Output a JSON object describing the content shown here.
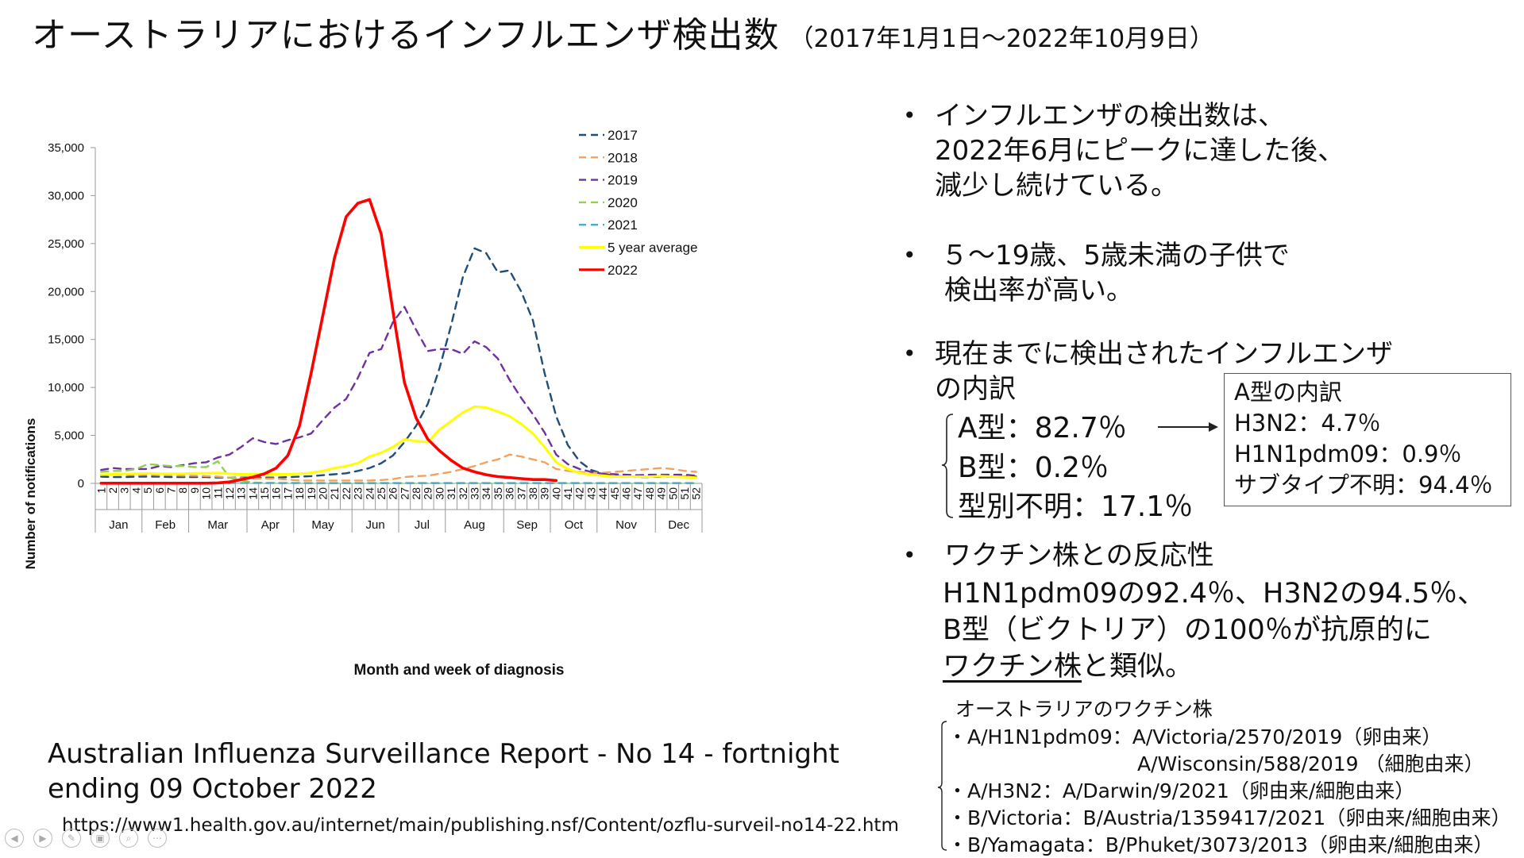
{
  "title": {
    "main": "オーストラリアにおけるインフルエンザ検出数",
    "sub": "（2017年1月1日～2022年10月9日）"
  },
  "chart_data": {
    "type": "line",
    "ylabel": "Number of notifications",
    "xlabel": "Month and week of diagnosis",
    "ylim": [
      0,
      35000
    ],
    "y_ticks": [
      "0",
      "5,000",
      "10,000",
      "15,000",
      "20,000",
      "25,000",
      "30,000",
      "35,000"
    ],
    "x_week_labels": [
      "1",
      "2",
      "3",
      "4",
      "5",
      "6",
      "7",
      "8",
      "9",
      "10",
      "11",
      "12",
      "13",
      "14",
      "15",
      "16",
      "17",
      "18",
      "19",
      "20",
      "21",
      "22",
      "23",
      "24",
      "25",
      "26",
      "27",
      "28",
      "29",
      "30",
      "31",
      "32",
      "33",
      "34",
      "35",
      "36",
      "37",
      "38",
      "39",
      "40",
      "41",
      "42",
      "43",
      "44",
      "45",
      "46",
      "47",
      "48",
      "49",
      "50",
      "51",
      "52"
    ],
    "months": [
      {
        "label": "Jan",
        "start": 1,
        "end": 4
      },
      {
        "label": "Feb",
        "start": 5,
        "end": 8
      },
      {
        "label": "Mar",
        "start": 9,
        "end": 13
      },
      {
        "label": "Apr",
        "start": 14,
        "end": 17
      },
      {
        "label": "May",
        "start": 18,
        "end": 22
      },
      {
        "label": "Jun",
        "start": 23,
        "end": 26
      },
      {
        "label": "Jul",
        "start": 27,
        "end": 30
      },
      {
        "label": "Aug",
        "start": 31,
        "end": 35
      },
      {
        "label": "Sep",
        "start": 36,
        "end": 39
      },
      {
        "label": "Oct",
        "start": 40,
        "end": 43
      },
      {
        "label": "Nov",
        "start": 44,
        "end": 48
      },
      {
        "label": "Dec",
        "start": 49,
        "end": 52
      }
    ],
    "series": [
      {
        "name": "2017",
        "color": "#1f4e79",
        "dash": "dashed",
        "values": [
          700,
          650,
          650,
          700,
          700,
          700,
          650,
          650,
          650,
          650,
          600,
          600,
          600,
          600,
          600,
          600,
          650,
          700,
          750,
          850,
          950,
          1050,
          1300,
          1600,
          2100,
          2900,
          4300,
          6000,
          8300,
          12000,
          16500,
          21500,
          24500,
          24000,
          22000,
          22200,
          20000,
          17000,
          11500,
          7000,
          4000,
          2300,
          1400,
          1000,
          800,
          700,
          650,
          650,
          700,
          700,
          700,
          700
        ]
      },
      {
        "name": "2018",
        "color": "#f4a15d",
        "dash": "dashed",
        "values": [
          900,
          900,
          900,
          850,
          900,
          850,
          850,
          800,
          800,
          750,
          700,
          600,
          550,
          500,
          500,
          500,
          400,
          300,
          300,
          300,
          300,
          300,
          300,
          300,
          350,
          450,
          650,
          750,
          800,
          1000,
          1200,
          1500,
          1800,
          2200,
          2500,
          3000,
          2800,
          2500,
          2200,
          1500,
          1300,
          1200,
          1100,
          1100,
          1200,
          1300,
          1400,
          1500,
          1600,
          1500,
          1300,
          1200
        ]
      },
      {
        "name": "2019",
        "color": "#7030a0",
        "dash": "dashed",
        "values": [
          1400,
          1600,
          1500,
          1500,
          1500,
          1800,
          1700,
          1900,
          2100,
          2200,
          2700,
          3000,
          3800,
          4700,
          4300,
          4100,
          4500,
          4800,
          5200,
          6600,
          7900,
          8800,
          11000,
          13600,
          14000,
          16800,
          18400,
          16000,
          13800,
          14000,
          14000,
          13500,
          14800,
          14200,
          13000,
          10800,
          8900,
          7200,
          5300,
          3000,
          2000,
          1500,
          1200,
          1000,
          950,
          900,
          850,
          900,
          900,
          900,
          900,
          800
        ]
      },
      {
        "name": "2020",
        "color": "#92d050",
        "dash": "dashed",
        "values": [
          1200,
          1300,
          1300,
          1500,
          2000,
          1900,
          1800,
          1800,
          1700,
          1700,
          2300,
          600,
          300,
          100,
          50,
          40,
          30,
          30,
          20,
          20,
          20,
          20,
          20,
          20,
          20,
          20,
          20,
          20,
          20,
          20,
          20,
          20,
          20,
          20,
          20,
          20,
          20,
          20,
          20,
          20,
          20,
          20,
          20,
          20,
          20,
          20,
          20,
          20,
          20,
          20,
          20,
          20
        ]
      },
      {
        "name": "2021",
        "color": "#4bacc6",
        "dash": "dashed",
        "values": [
          30,
          30,
          30,
          30,
          30,
          30,
          30,
          30,
          30,
          30,
          30,
          30,
          30,
          30,
          30,
          30,
          30,
          30,
          30,
          30,
          30,
          30,
          30,
          30,
          30,
          30,
          30,
          30,
          30,
          30,
          30,
          30,
          30,
          30,
          30,
          30,
          30,
          30,
          30,
          30,
          30,
          30,
          30,
          30,
          30,
          30,
          30,
          30,
          30,
          30,
          30,
          30
        ]
      },
      {
        "name": "5 year average",
        "color": "#ffff00",
        "dash": "solid",
        "values": [
          900,
          950,
          1000,
          1000,
          1050,
          1000,
          1000,
          1000,
          1050,
          1050,
          1100,
          1000,
          950,
          950,
          950,
          950,
          950,
          1000,
          1100,
          1300,
          1600,
          1800,
          2100,
          2800,
          3200,
          3800,
          4600,
          4400,
          4300,
          5600,
          6500,
          7400,
          8000,
          7900,
          7500,
          7000,
          6200,
          5200,
          3800,
          2200,
          1500,
          1100,
          900,
          800,
          700,
          700,
          700,
          700,
          750,
          700,
          650,
          600
        ]
      },
      {
        "name": "2022",
        "color": "#ff0000",
        "dash": "solid",
        "values": [
          20,
          20,
          20,
          20,
          20,
          20,
          20,
          20,
          20,
          20,
          50,
          150,
          400,
          650,
          1000,
          1600,
          2900,
          6000,
          11500,
          17500,
          23500,
          27800,
          29200,
          29600,
          26000,
          18000,
          10500,
          6800,
          4600,
          3400,
          2400,
          1600,
          1200,
          900,
          700,
          600,
          500,
          400,
          400,
          300,
          null,
          null,
          null,
          null,
          null,
          null,
          null,
          null,
          null,
          null,
          null,
          null
        ]
      }
    ]
  },
  "bullets": {
    "b1": [
      "インフルエンザの検出数は、",
      "2022年6月にピークに達した後、",
      "減少し続けている。"
    ],
    "b2": [
      "５～19歳、5歳未満の子供で",
      "検出率が高い。"
    ],
    "b3": [
      "現在までに検出されたインフルエンザ",
      "の内訳"
    ],
    "b3_items": [
      "A型：82.7％",
      "B型：0.2％",
      "型別不明：17.1％"
    ],
    "b4_line1": "ワクチン株との反応性",
    "b4_line2": "H1N1pdm09の92.4％、H3N2の94.5％、",
    "b4_line3": "B型（ビクトリア）の100％が抗原的に",
    "b4_line4a": "ワクチン株",
    "b4_line4b": "と類似。"
  },
  "a_box": {
    "title": "A型の内訳",
    "lines": [
      "H3N2：4.7％",
      "H1N1pdm09：0.9％",
      "サブタイプ不明：94.4％"
    ]
  },
  "vaccine": {
    "heading": "オーストラリアのワクチン株",
    "lines": [
      "・A/H1N1pdm09：A/Victoria/2570/2019（卵由来）",
      "A/Wisconsin/588/2019 （細胞由来）",
      "・A/H3N2：A/Darwin/9/2021（卵由来/細胞由来）",
      "・B/Victoria：B/Austria/1359417/2021（卵由来/細胞由来）",
      "・B/Yamagata：B/Phuket/3073/2013（卵由来/細胞由来）"
    ]
  },
  "source": {
    "line1": "Australian Influenza Surveillance Report - No 14 - fortnight",
    "line2": "ending 09 October 2022",
    "url": "https://www1.health.gov.au/internet/main/publishing.nsf/Content/ozflu-surveil-no14-22.htm"
  },
  "nav_icons": [
    "prev-icon",
    "next-icon",
    "pen-icon",
    "slides-icon",
    "search-icon",
    "more-icon"
  ]
}
